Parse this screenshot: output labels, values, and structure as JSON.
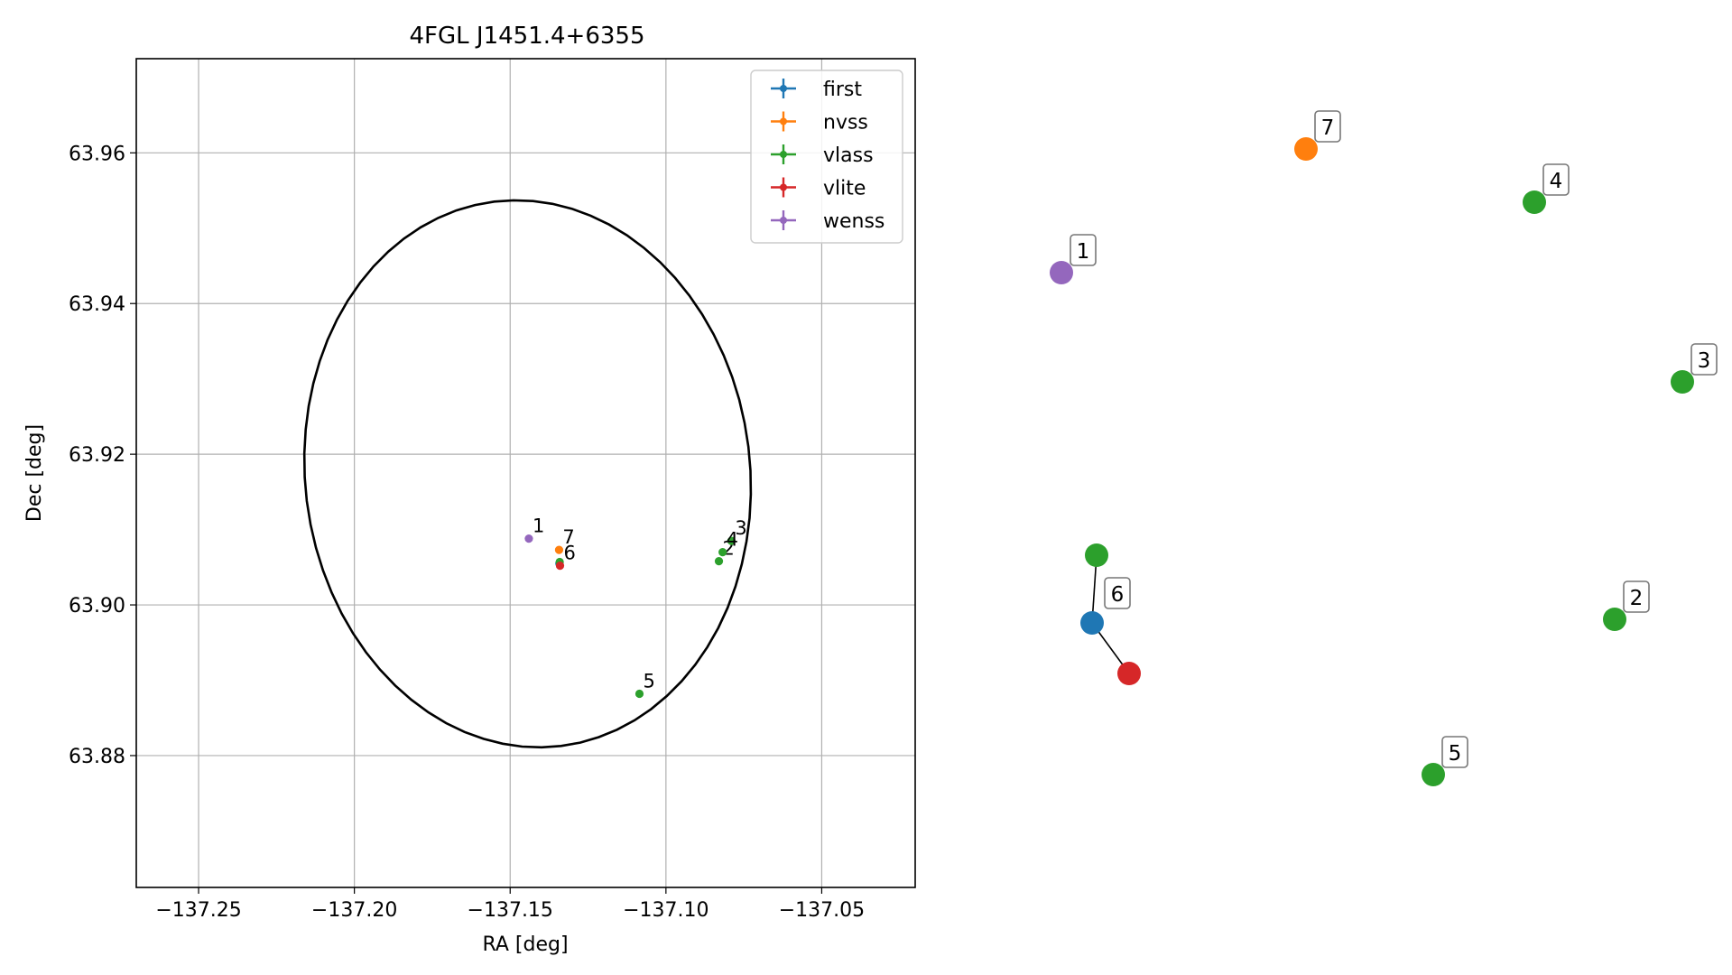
{
  "chart_data": [
    {
      "type": "scatter",
      "title": "4FGL J1451.4+6355",
      "xlabel": "RA [deg]",
      "ylabel": "Dec [deg]",
      "xlim": [
        -137.27,
        -137.02
      ],
      "ylim": [
        63.8625,
        63.9725
      ],
      "x_ticks": [
        -137.25,
        -137.2,
        -137.15,
        -137.1,
        -137.05
      ],
      "x_tick_labels": [
        "−137.25",
        "−137.20",
        "−137.15",
        "−137.10",
        "−137.05"
      ],
      "y_ticks": [
        63.88,
        63.9,
        63.92,
        63.94,
        63.96
      ],
      "y_tick_labels": [
        "63.88",
        "63.90",
        "63.92",
        "63.94",
        "63.96"
      ],
      "grid": true,
      "legend_position": "top-right",
      "series": [
        {
          "name": "first",
          "color": "#1f77b4",
          "points": [
            {
              "x": -137.1342,
              "y": 63.9055
            }
          ]
        },
        {
          "name": "nvss",
          "color": "#ff7f0e",
          "points": [
            {
              "x": -137.1343,
              "y": 63.9073,
              "label": "7"
            }
          ]
        },
        {
          "name": "vlass",
          "color": "#2ca02c",
          "points": [
            {
              "x": -137.083,
              "y": 63.9058,
              "label": "2"
            },
            {
              "x": -137.079,
              "y": 63.9085,
              "label": "3"
            },
            {
              "x": -137.0818,
              "y": 63.907,
              "label": "4"
            },
            {
              "x": -137.1085,
              "y": 63.8882,
              "label": "5"
            },
            {
              "x": -137.1341,
              "y": 63.9057
            }
          ]
        },
        {
          "name": "vlite",
          "color": "#d62728",
          "points": [
            {
              "x": -137.134,
              "y": 63.9052,
              "label": "6"
            }
          ]
        },
        {
          "name": "wenss",
          "color": "#9467bd",
          "points": [
            {
              "x": -137.144,
              "y": 63.9088,
              "label": "1"
            }
          ]
        }
      ],
      "ellipse": {
        "center_ra": -137.1444,
        "center_dec": 63.9174,
        "semi_ra": 0.0714,
        "semi_dec": 0.0364,
        "tilt_deg": -7,
        "color": "#000000"
      }
    },
    {
      "type": "scatter",
      "description_free": true,
      "axes": "off",
      "groups": [
        {
          "label": "1",
          "members": [
            {
              "series": "wenss",
              "color": "#9467bd"
            }
          ]
        },
        {
          "label": "7",
          "members": [
            {
              "series": "nvss",
              "color": "#ff7f0e"
            }
          ]
        },
        {
          "label": "4",
          "members": [
            {
              "series": "vlass",
              "color": "#2ca02c"
            }
          ]
        },
        {
          "label": "3",
          "members": [
            {
              "series": "vlass",
              "color": "#2ca02c"
            }
          ]
        },
        {
          "label": "2",
          "members": [
            {
              "series": "vlass",
              "color": "#2ca02c"
            }
          ]
        },
        {
          "label": "5",
          "members": [
            {
              "series": "vlass",
              "color": "#2ca02c"
            }
          ]
        },
        {
          "label": "6",
          "members": [
            {
              "series": "vlass",
              "color": "#2ca02c"
            },
            {
              "series": "first",
              "color": "#1f77b4"
            },
            {
              "series": "vlite",
              "color": "#d62728"
            }
          ]
        }
      ]
    }
  ]
}
